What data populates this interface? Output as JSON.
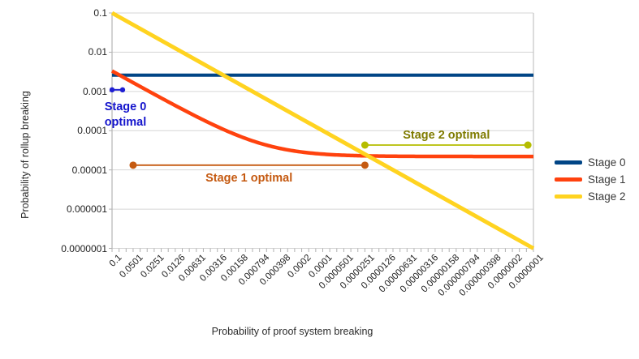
{
  "chart_data": {
    "type": "line",
    "title": "",
    "xlabel": "Probability of proof system breaking",
    "ylabel": "Probability of rollup breaking",
    "x_axis": {
      "scale": "log",
      "direction": "decreasing-left-to-right",
      "max": 0.1,
      "min": 1e-07,
      "tick_labels": [
        "0.1",
        "0.0501",
        "0.0251",
        "0.0126",
        "0.00631",
        "0.00316",
        "0.00158",
        "0.000794",
        "0.000398",
        "0.0002",
        "0.0001",
        "0.0000501",
        "0.0000251",
        "0.0000126",
        "0.00000631",
        "0.00000316",
        "0.00000158",
        "0.000000794",
        "0.000000398",
        "0.0000002",
        "0.0000001"
      ]
    },
    "y_axis": {
      "scale": "log",
      "max": 0.1,
      "min": 1e-07,
      "tick_labels": [
        "0.1",
        "0.01",
        "0.001",
        "0.0001",
        "0.00001",
        "0.000001",
        "0.0000001"
      ]
    },
    "grid": "horizontal-only",
    "legend_position": "right",
    "series": [
      {
        "name": "Stage 0",
        "color": "#004586",
        "model": "constant",
        "value": 0.0026,
        "points": [
          [
            0.1,
            0.0026
          ],
          [
            1e-07,
            0.0026
          ]
        ]
      },
      {
        "name": "Stage 1",
        "color": "#ff420e",
        "model": "linear_plus_floor",
        "slope": 0.033,
        "floor": 2.2e-05,
        "points": [
          [
            0.1,
            0.0033
          ],
          [
            0.01,
            0.00035
          ],
          [
            0.001,
            5.5e-05
          ],
          [
            0.0001,
            2.53e-05
          ],
          [
            1e-05,
            2.23e-05
          ],
          [
            1e-06,
            2.2e-05
          ],
          [
            1e-07,
            2.2e-05
          ]
        ]
      },
      {
        "name": "Stage 2",
        "color": "#ffd320",
        "model": "identity",
        "points": [
          [
            0.1,
            0.1
          ],
          [
            1e-07,
            1e-07
          ]
        ]
      }
    ],
    "annotations": [
      {
        "label": "Stage 0 optimal",
        "text_color": "#1414cc",
        "line_color": "#1f1fd2",
        "x_range": [
          0.1,
          0.0708
        ],
        "y": 0.0011,
        "label_side": "below"
      },
      {
        "label": "Stage 1 optimal",
        "text_color": "#c55a11",
        "line_color": "#c55a11",
        "x_range": [
          0.0501,
          2.51e-05
        ],
        "y": 1.32e-05,
        "label_side": "below"
      },
      {
        "label": "Stage 2 optimal",
        "text_color": "#7f7b00",
        "line_color": "#b5bd00",
        "x_range": [
          2.51e-05,
          1.2e-07
        ],
        "y": 4.3e-05,
        "label_side": "above"
      }
    ]
  }
}
